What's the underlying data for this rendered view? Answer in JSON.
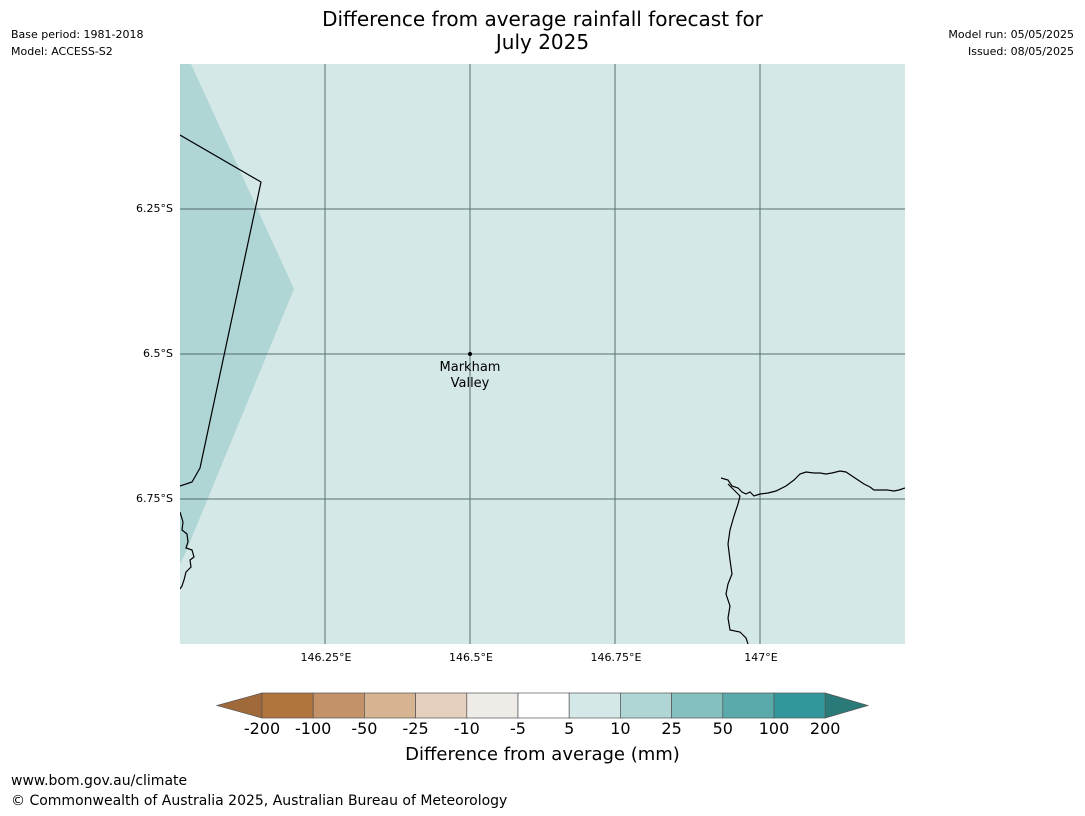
{
  "title_line_1": "Difference from average rainfall forecast for",
  "title_line_2": "July 2025",
  "meta_left": {
    "base_period": "Base period: 1981-2018",
    "model": "Model: ACCESS-S2"
  },
  "meta_right": {
    "model_run": "Model run: 05/05/2025",
    "issued": "Issued: 08/05/2025"
  },
  "map": {
    "lat_labels": [
      "6.25°S",
      "6.5°S",
      "6.75°S"
    ],
    "lon_labels": [
      "146.25°E",
      "146.5°E",
      "146.75°E",
      "147°E"
    ],
    "place": {
      "line1": "Markham",
      "line2": "Valley"
    },
    "colors": {
      "main_fill": "#d4e8e7",
      "west_fill": "#afd5d5",
      "grid": "#2f4a46",
      "coast": "#000000"
    }
  },
  "colorbar": {
    "ticks": [
      "-200",
      "-100",
      "-50",
      "-25",
      "-10",
      "-5",
      "5",
      "10",
      "25",
      "50",
      "100",
      "200"
    ],
    "colors": [
      "#a0693a",
      "#b0743d",
      "#c39268",
      "#d6b391",
      "#e5d0bd",
      "#efebe7",
      "#ffffff",
      "#d4e8e7",
      "#afd5d5",
      "#84c0be",
      "#5aaaab",
      "#31979a",
      "#2b7a7a"
    ],
    "label": "Difference from average (mm)"
  },
  "footer": {
    "url": "www.bom.gov.au/climate",
    "copyright": "© Commonwealth of Australia 2025, Australian Bureau of Meteorology"
  }
}
